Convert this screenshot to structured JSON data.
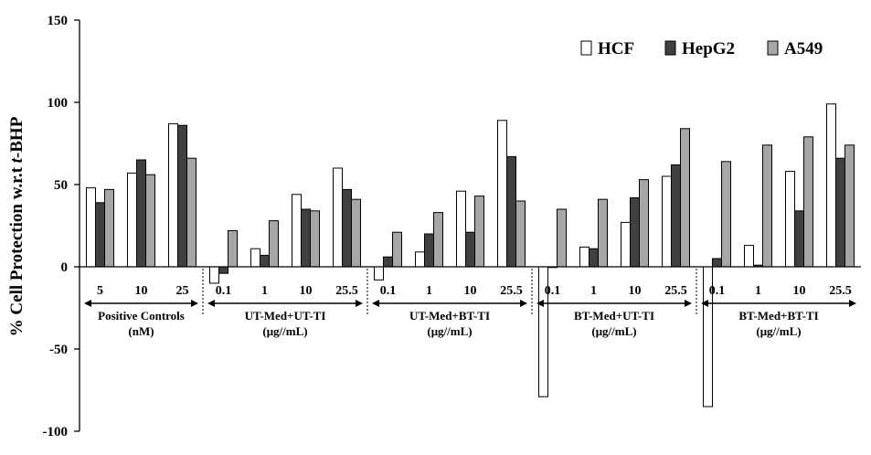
{
  "chart_data": {
    "type": "bar",
    "ylabel_prefix": "% Cell Protection w.r.t ",
    "ylabel_italic": "t",
    "ylabel_suffix": "-BHP",
    "ylim": [
      -100,
      150
    ],
    "yticks": [
      150,
      100,
      50,
      0,
      -50,
      -100
    ],
    "grid": false,
    "legend_position": "top-right",
    "categories": [
      "5",
      "10",
      "25",
      "0.1",
      "1",
      "10",
      "25.5",
      "0.1",
      "1",
      "10",
      "25.5",
      "0.1",
      "1",
      "10",
      "25.5",
      "0.1",
      "1",
      "10",
      "25.5"
    ],
    "groups": [
      {
        "line1": "Positive Controls",
        "line2": "(nM)",
        "size": 3
      },
      {
        "line1": "UT-Med+UT-TI",
        "line2": "(μg//mL)",
        "size": 4
      },
      {
        "line1": "UT-Med+BT-TI",
        "line2": "(μg//mL)",
        "size": 4
      },
      {
        "line1": "BT-Med+UT-TI",
        "line2": "(μg//mL)",
        "size": 4
      },
      {
        "line1": "BT-Med+BT-TI",
        "line2": "(μg//mL)",
        "size": 4
      }
    ],
    "series": [
      {
        "name": "HCF",
        "color": "#ffffff",
        "values": [
          48,
          57,
          87,
          -10,
          11,
          44,
          60,
          -8,
          9,
          46,
          89,
          -79,
          12,
          27,
          55,
          -85,
          13,
          58,
          99
        ]
      },
      {
        "name": "HepG2",
        "color": "#404040",
        "values": [
          39,
          65,
          86,
          -4,
          7,
          35,
          47,
          6,
          20,
          21,
          67,
          0,
          11,
          42,
          62,
          5,
          1,
          34,
          66
        ]
      },
      {
        "name": "A549",
        "color": "#a6a6a6",
        "values": [
          47,
          56,
          66,
          22,
          28,
          34,
          41,
          21,
          33,
          43,
          40,
          35,
          41,
          53,
          84,
          64,
          74,
          79,
          74
        ]
      }
    ]
  }
}
